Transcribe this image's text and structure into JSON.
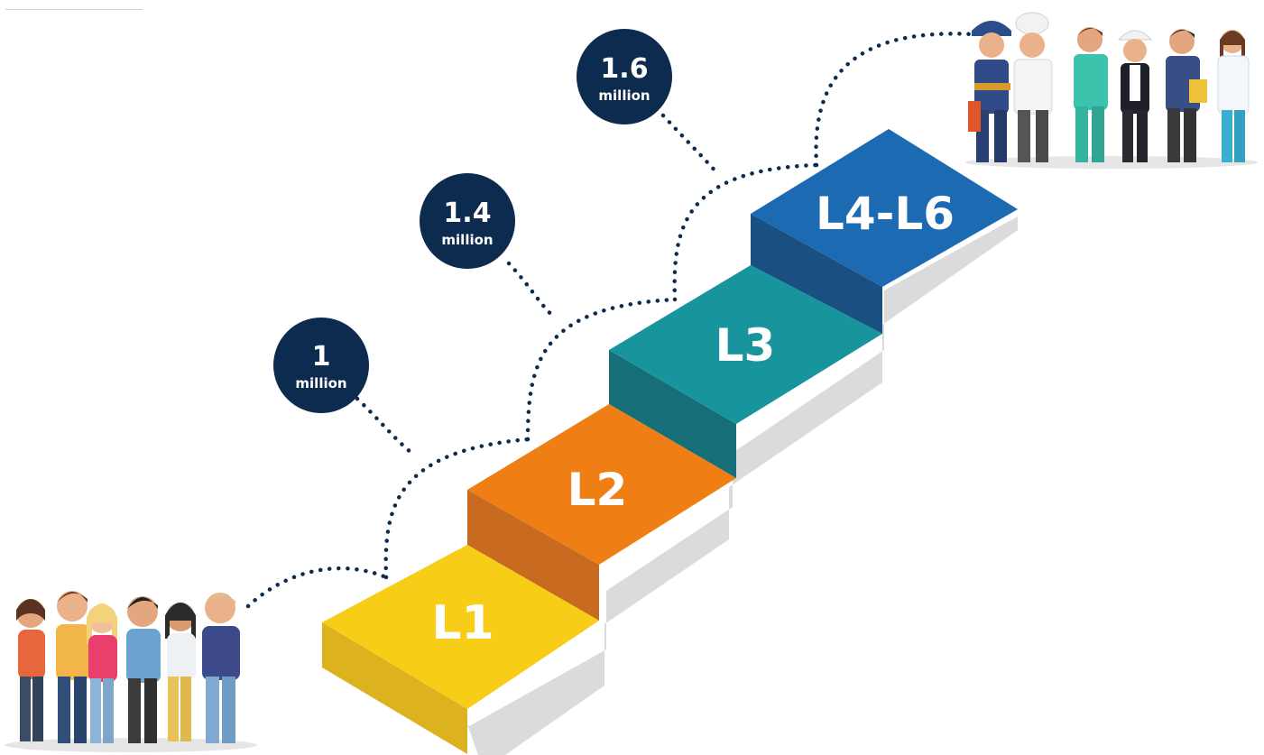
{
  "steps": [
    {
      "label": "L1",
      "top": "#f7cd18",
      "front": "#dcb21f"
    },
    {
      "label": "L2",
      "top": "#ef7f14",
      "front": "#c86a1f"
    },
    {
      "label": "L3",
      "top": "#17949c",
      "front": "#166f78"
    },
    {
      "label": "L4-L6",
      "top": "#1c6ab1",
      "front": "#1a4f82"
    }
  ],
  "bubbles": [
    {
      "value": "1",
      "unit": "million"
    },
    {
      "value": "1.4",
      "unit": "million"
    },
    {
      "value": "1.6",
      "unit": "million"
    }
  ],
  "colors": {
    "bubble": "#0d2a4f",
    "dots": "#0d2a4f",
    "stair_shadow": "#d9dbdc"
  },
  "illustrations": {
    "start_group": "group-of-young-people",
    "end_group": "group-of-workers-in-uniforms"
  }
}
